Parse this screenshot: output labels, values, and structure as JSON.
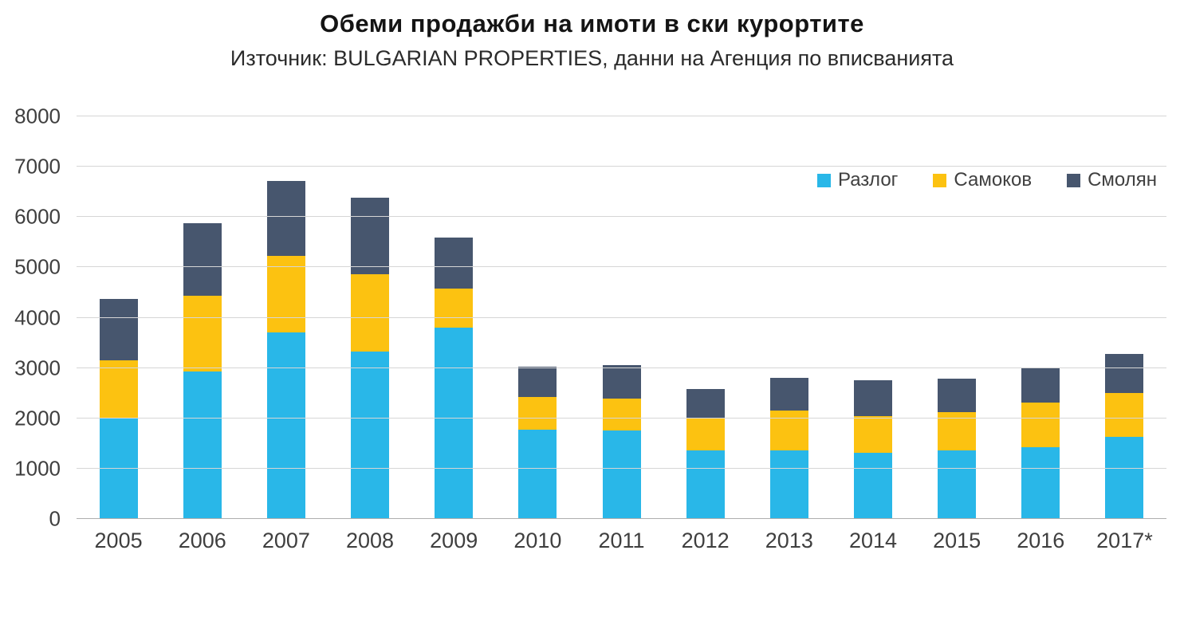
{
  "title": "Обеми продажби на имоти в ски курортите",
  "subtitle": "Източник: BULGARIAN PROPERTIES, данни на Агенция по вписванията",
  "chart_data": {
    "type": "bar",
    "stacked": true,
    "title": "Обеми продажби на имоти в ски курортите",
    "subtitle": "Източник: BULGARIAN PROPERTIES, данни на Агенция по вписванията",
    "categories": [
      "2005",
      "2006",
      "2007",
      "2008",
      "2009",
      "2010",
      "2011",
      "2012",
      "2013",
      "2014",
      "2015",
      "2016",
      "2017*"
    ],
    "series": [
      {
        "name": "Разлог",
        "color": "#29B7E8",
        "values": [
          2000,
          2930,
          3700,
          3330,
          3810,
          1780,
          1760,
          1370,
          1370,
          1320,
          1370,
          1420,
          1630
        ]
      },
      {
        "name": "Самоков",
        "color": "#FCC211",
        "values": [
          1150,
          1510,
          1530,
          1540,
          770,
          640,
          640,
          640,
          790,
          720,
          760,
          890,
          880
        ]
      },
      {
        "name": "Смолян",
        "color": "#47566E",
        "values": [
          1230,
          1440,
          1490,
          1510,
          1010,
          600,
          660,
          570,
          640,
          720,
          660,
          680,
          770
        ]
      }
    ],
    "xlabel": "",
    "ylabel": "",
    "ylim": [
      0,
      8000
    ],
    "yticks": [
      0,
      1000,
      2000,
      3000,
      4000,
      5000,
      6000,
      7000,
      8000
    ],
    "grid": true,
    "legend_position": "top-right"
  },
  "colors": {
    "background": "#ffffff",
    "gridline": "#d6d6d6",
    "axis_text": "#3f3f3f",
    "title_text": "#141414"
  }
}
